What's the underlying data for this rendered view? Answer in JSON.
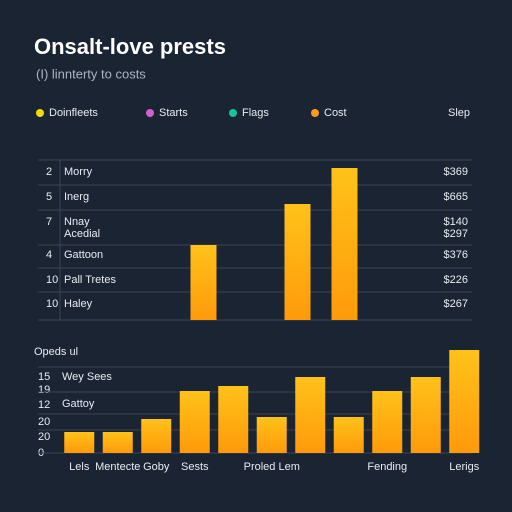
{
  "header": {
    "title": "Onsalt-love prests",
    "subtitle": "(I) linnterty to costs"
  },
  "legend": {
    "items": [
      {
        "name": "Doinfleets",
        "color": "#f5d90a"
      },
      {
        "name": "Starts",
        "color": "#d45fd0"
      },
      {
        "name": "Flags",
        "color": "#19c39a"
      },
      {
        "name": "Cost",
        "color": "#ff9a1f"
      }
    ],
    "side_label": "Slep"
  },
  "chart_data": [
    {
      "type": "bar",
      "color": "#ffa80a",
      "rows": [
        {
          "left": "2",
          "label": [
            "Morry"
          ],
          "right": [
            "$369"
          ]
        },
        {
          "left": "5",
          "label": [
            "Inerg"
          ],
          "right": [
            "$665"
          ]
        },
        {
          "left": "7",
          "label": [
            "Nnay",
            "Acedial"
          ],
          "right": [
            "$140",
            "$297"
          ]
        },
        {
          "left": "4",
          "label": [
            "Gattoon"
          ],
          "right": [
            "$376"
          ]
        },
        {
          "left": "10",
          "label": [
            "Pall Tretes"
          ],
          "right": [
            "$226"
          ]
        },
        {
          "left": "10",
          "label": [
            "Haley"
          ],
          "right": [
            "$267"
          ]
        }
      ],
      "categories": [
        null,
        null,
        null,
        null,
        null,
        null,
        null,
        null,
        null
      ],
      "values": [
        null,
        null,
        null,
        75,
        null,
        116,
        152,
        null,
        null
      ],
      "ylim": [
        0,
        160
      ]
    },
    {
      "type": "bar",
      "title": "Opeds ul",
      "color": "#ffa80a",
      "left_labels": [
        "15",
        "19",
        "12",
        "20",
        "20",
        "0"
      ],
      "row_labels": [
        "Wey Sees",
        "Gattoy"
      ],
      "categories": [
        "Lels",
        "Mentecte",
        "Goby",
        "Sests",
        null,
        "Proled Lem",
        null,
        null,
        "Fending",
        null,
        "Lerigs"
      ],
      "values": [
        21,
        21,
        34,
        62,
        67,
        36,
        76,
        36,
        62,
        76,
        103
      ],
      "ylim": [
        0,
        110
      ]
    }
  ]
}
